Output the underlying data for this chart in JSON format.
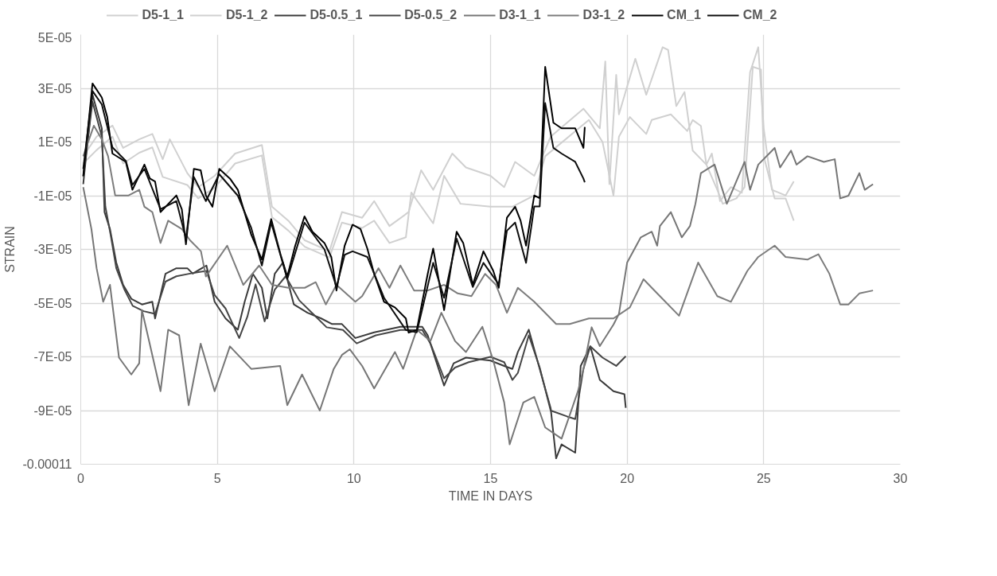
{
  "chart_data": {
    "type": "line",
    "xlabel": "TIME IN DAYS",
    "ylabel": "STRAIN",
    "xlim": [
      0,
      30
    ],
    "xticks": [
      0,
      5,
      10,
      15,
      20,
      25,
      30
    ],
    "ylim": [
      -0.00011,
      5e-05
    ],
    "yticks": [
      {
        "value": 5e-05,
        "label": "5E-05"
      },
      {
        "value": 3e-05,
        "label": "3E-05"
      },
      {
        "value": 1e-05,
        "label": "1E-05"
      },
      {
        "value": -1e-05,
        "label": "-1E-05"
      },
      {
        "value": -3e-05,
        "label": "-3E-05"
      },
      {
        "value": -5e-05,
        "label": "-5E-05"
      },
      {
        "value": -7e-05,
        "label": "-7E-05"
      },
      {
        "value": -9e-05,
        "label": "-9E-05"
      },
      {
        "value": -0.00011,
        "label": "-0.00011"
      }
    ],
    "grid": true,
    "legend": "top",
    "marker": "none",
    "line_style": "solid",
    "series": [
      {
        "name": "D5-1_1",
        "color": "#d0d0d0",
        "x": [
          0.09,
          0.58,
          1.16,
          1.55,
          2.14,
          2.62,
          3.0,
          3.26,
          3.9,
          4.3,
          4.9,
          5.65,
          6.63,
          7.0,
          7.6,
          8.2,
          9.1,
          9.56,
          10.3,
          10.74,
          11.3,
          12.0,
          12.46,
          12.9,
          13.6,
          14.1,
          15.0,
          15.5,
          15.9,
          16.6,
          17.2,
          18.4,
          19.0,
          19.2,
          19.35,
          19.6,
          19.7,
          20.3,
          20.7,
          21.3,
          21.5,
          21.8,
          22.1,
          22.4,
          22.9,
          23.1,
          23.4,
          23.8,
          24.2,
          24.5,
          24.8,
          25.0,
          25.3,
          25.8,
          26.1
        ],
        "values": [
          4.7e-06,
          1.2e-05,
          1.61e-05,
          7.8e-06,
          1.1e-05,
          1.3e-05,
          3.6e-06,
          1.1e-05,
          -1.6e-06,
          -6.8e-06,
          -2.6e-06,
          5.7e-06,
          8.9e-06,
          -1.41e-05,
          -1.93e-05,
          -2.66e-05,
          -3.07e-05,
          -1.61e-05,
          -1.82e-05,
          -1.2e-05,
          -2.13e-05,
          -1.61e-05,
          -5e-07,
          -7.8e-06,
          5.7e-06,
          5e-07,
          -2.6e-06,
          -6.8e-06,
          2.6e-06,
          -2.6e-06,
          1.2e-05,
          2.24e-05,
          1.51e-05,
          4e-05,
          -5.7e-06,
          3.5e-05,
          2.03e-05,
          4.1e-05,
          2.76e-05,
          4.53e-05,
          4.43e-05,
          2.34e-05,
          2.86e-05,
          6.8e-06,
          1.6e-06,
          5.7e-06,
          -1.2e-05,
          -6.8e-06,
          -8.9e-06,
          3.6e-05,
          4.53e-05,
          1.51e-05,
          -7.8e-06,
          -9.9e-06,
          -4.7e-06
        ]
      },
      {
        "name": "D5-1_2",
        "color": "#d0d0d0",
        "x": [
          0.09,
          0.58,
          1.16,
          1.55,
          2.14,
          2.62,
          3.0,
          3.9,
          4.3,
          4.9,
          5.65,
          6.63,
          7.0,
          7.6,
          8.2,
          9.1,
          9.56,
          10.3,
          10.74,
          11.3,
          11.9,
          12.1,
          12.9,
          13.3,
          13.9,
          15.0,
          15.8,
          16.6,
          17.0,
          18.6,
          19.1,
          19.5,
          19.7,
          20.1,
          20.7,
          20.9,
          21.6,
          22.2,
          22.4,
          22.7,
          22.9,
          23.3,
          23.5,
          24.0,
          24.3,
          24.6,
          24.9,
          25.0,
          25.4,
          25.8,
          26.1
        ],
        "values": [
          2e-06,
          7e-06,
          1.2e-05,
          2e-06,
          6e-06,
          8e-06,
          -3e-06,
          -6e-06,
          -1.1e-05,
          -7e-06,
          2e-06,
          5e-06,
          -1.8e-05,
          -2.3e-05,
          -2.9e-05,
          -3.3e-05,
          -2e-05,
          -2.2e-05,
          -1.93e-05,
          -2.76e-05,
          -2.55e-05,
          -8.8e-06,
          -2.03e-05,
          -2.6e-06,
          -1.3e-05,
          -1.41e-05,
          -1.41e-05,
          -9.9e-06,
          4.7e-06,
          1.82e-05,
          1e-05,
          -1e-05,
          1.2e-05,
          1.93e-05,
          1.3e-05,
          1.82e-05,
          2.03e-05,
          1.41e-05,
          1.82e-05,
          1.6e-05,
          1.6e-06,
          -7.8e-06,
          -1.3e-05,
          -1.1e-05,
          -6.8e-06,
          3.8e-05,
          3.7e-05,
          4.7e-06,
          -1.1e-05,
          -1.1e-05,
          -1.93e-05
        ]
      },
      {
        "name": "D5-0.5_1",
        "color": "#3a3a3a",
        "x": [
          0.09,
          0.43,
          0.77,
          0.87,
          1.07,
          1.3,
          1.55,
          1.85,
          2.24,
          2.62,
          2.72,
          3.1,
          3.5,
          3.9,
          4.1,
          4.6,
          4.9,
          5.3,
          5.75,
          6.0,
          6.3,
          6.63,
          6.83,
          7.1,
          7.4,
          7.8,
          8.3,
          8.8,
          9.2,
          9.56,
          10.05,
          10.74,
          11.7,
          12.5,
          12.7,
          13.0,
          13.3,
          13.65,
          14.1,
          15.0,
          15.5,
          15.8,
          16.0,
          16.4,
          16.8,
          17.2,
          17.4,
          17.6,
          18.1,
          18.3,
          18.65,
          19.0,
          19.5,
          19.9,
          19.95
        ],
        "values": [
          -5.7e-06,
          2.76e-05,
          1.51e-05,
          -1.61e-05,
          -2.24e-05,
          -3.49e-05,
          -4.32e-05,
          -4.84e-05,
          -5.05e-05,
          -4.95e-05,
          -5.57e-05,
          -3.91e-05,
          -3.7e-05,
          -3.7e-05,
          -3.9e-05,
          -3.6e-05,
          -4.95e-05,
          -5.57e-05,
          -5.99e-05,
          -4.95e-05,
          -3.91e-05,
          -4.43e-05,
          -5.57e-05,
          -3.91e-05,
          -3.49e-05,
          -5.05e-05,
          -5.36e-05,
          -5.57e-05,
          -5.78e-05,
          -5.78e-05,
          -6.3e-05,
          -6.09e-05,
          -5.88e-05,
          -5.88e-05,
          -6.2e-05,
          -7.14e-05,
          -8.07e-05,
          -7.24e-05,
          -7.03e-05,
          -7.14e-05,
          -7.34e-05,
          -7.45e-05,
          -6.82e-05,
          -5.99e-05,
          -7.45e-05,
          -8.91e-05,
          -0.0001078,
          -0.0001026,
          -0.0001057,
          -7.34e-05,
          -6.61e-05,
          -7.86e-05,
          -8.28e-05,
          -8.39e-05,
          -8.9e-05
        ]
      },
      {
        "name": "D5-0.5_2",
        "color": "#454545",
        "x": [
          0.09,
          0.43,
          0.77,
          0.9,
          1.1,
          1.3,
          1.6,
          1.9,
          2.3,
          2.72,
          3.1,
          3.5,
          4.0,
          4.6,
          4.9,
          5.3,
          5.8,
          6.1,
          6.4,
          6.73,
          7.1,
          7.5,
          8.0,
          8.5,
          9.0,
          9.6,
          10.1,
          10.8,
          11.7,
          12.5,
          12.8,
          13.3,
          13.7,
          14.2,
          15.0,
          15.5,
          15.8,
          16.0,
          16.4,
          16.8,
          17.2,
          17.8,
          18.1,
          18.4,
          18.65,
          19.1,
          19.6,
          19.95
        ],
        "values": [
          -3e-06,
          2.5e-05,
          1.2e-05,
          -1.4e-05,
          -2.5e-05,
          -3.7e-05,
          -4.5e-05,
          -5.1e-05,
          -5.3e-05,
          -5.4e-05,
          -4.2e-05,
          -4e-05,
          -3.9e-05,
          -3.8e-05,
          -4.7e-05,
          -5.2e-05,
          -6.3e-05,
          -5.5e-05,
          -4.3e-05,
          -5.68e-05,
          -4.5e-05,
          -4e-05,
          -4.9e-05,
          -5.4e-05,
          -5.9e-05,
          -6e-05,
          -6.5e-05,
          -6.2e-05,
          -6e-05,
          -6e-05,
          -6.5e-05,
          -7.8e-05,
          -7.4e-05,
          -7.2e-05,
          -7e-05,
          -7.2e-05,
          -7.86e-05,
          -7.6e-05,
          -6.2e-05,
          -7.4e-05,
          -9e-05,
          -9.22e-05,
          -9.32e-05,
          -7.45e-05,
          -6.61e-05,
          -7.03e-05,
          -7.34e-05,
          -6.98e-05
        ]
      },
      {
        "name": "D3-1_1",
        "color": "#767676",
        "x": [
          0.09,
          0.39,
          0.58,
          0.82,
          1.07,
          1.4,
          1.85,
          2.14,
          2.24,
          2.5,
          2.92,
          3.2,
          3.6,
          3.95,
          4.39,
          4.9,
          5.46,
          6.24,
          7.3,
          7.56,
          8.1,
          8.75,
          9.26,
          9.56,
          9.85,
          10.3,
          10.74,
          11.5,
          11.8,
          12.3,
          12.8,
          13.2,
          13.7,
          14.1,
          14.7,
          15.1,
          15.5,
          15.7,
          16.2,
          16.6,
          17.0,
          17.6,
          18.2,
          18.4,
          18.7,
          19.0,
          19.5,
          19.7,
          20.0,
          20.5,
          20.9,
          21.1,
          21.2,
          21.6,
          22.0,
          22.3,
          22.5,
          22.7,
          23.2,
          23.65,
          24.3,
          24.5,
          24.8,
          25.4,
          25.6,
          26.0,
          26.2,
          26.6,
          27.2,
          27.6,
          27.8,
          28.1,
          28.5,
          28.7,
          29.0
        ],
        "values": [
          -6.8e-06,
          -2.24e-05,
          -3.7e-05,
          -4.95e-05,
          -4.32e-05,
          -7.03e-05,
          -7.66e-05,
          -7.24e-05,
          -5.26e-05,
          -6.41e-05,
          -8.28e-05,
          -5.99e-05,
          -6.2e-05,
          -8.8e-05,
          -6.51e-05,
          -8.28e-05,
          -6.61e-05,
          -7.45e-05,
          -7.34e-05,
          -8.8e-05,
          -7.66e-05,
          -9e-05,
          -7.45e-05,
          -6.93e-05,
          -6.72e-05,
          -7.34e-05,
          -8.18e-05,
          -6.82e-05,
          -7.45e-05,
          -5.99e-05,
          -6.41e-05,
          -5.36e-05,
          -6.41e-05,
          -6.82e-05,
          -5.88e-05,
          -7.14e-05,
          -8.7e-05,
          -0.0001026,
          -8.7e-05,
          -8.49e-05,
          -9.63e-05,
          -0.0001005,
          -8.28e-05,
          -7.45e-05,
          -5.9e-05,
          -6.6e-05,
          -5.8e-05,
          -5.4e-05,
          -3.49e-05,
          -2.55e-05,
          -2.34e-05,
          -2.86e-05,
          -2.13e-05,
          -1.61e-05,
          -2.55e-05,
          -2.13e-05,
          -1.3e-05,
          -1.6e-06,
          1.6e-06,
          -1.3e-05,
          2.6e-06,
          -7.8e-06,
          1.6e-06,
          7.8e-06,
          5e-07,
          6.8e-06,
          1.6e-06,
          4.7e-06,
          2.6e-06,
          3.6e-06,
          -1.1e-05,
          -1e-05,
          -1.6e-06,
          -7.8e-06,
          -5.7e-06
        ]
      },
      {
        "name": "D3-1_2",
        "color": "#7c7c7c",
        "x": [
          0.09,
          0.48,
          0.77,
          1.0,
          1.26,
          1.75,
          2.14,
          2.33,
          2.62,
          2.92,
          3.2,
          3.7,
          4.0,
          4.4,
          4.58,
          5.36,
          5.95,
          6.53,
          7.0,
          7.6,
          8.2,
          8.6,
          8.97,
          9.36,
          10.05,
          10.3,
          10.9,
          11.3,
          11.7,
          12.2,
          12.7,
          13.3,
          13.8,
          14.3,
          14.8,
          15.2,
          15.6,
          16.0,
          16.6,
          17.4,
          17.9,
          18.6,
          19.1,
          19.5,
          20.1,
          20.6,
          21.2,
          21.9,
          22.6,
          23.3,
          23.8,
          24.4,
          24.8,
          25.4,
          25.8,
          26.6,
          27.0,
          27.4,
          27.8,
          28.1,
          28.5,
          29.0
        ],
        "values": [
          4.7e-06,
          1.61e-05,
          1.1e-05,
          4.7e-06,
          -9.9e-06,
          -9.9e-06,
          -7.8e-06,
          -1.41e-05,
          -1.61e-05,
          -2.76e-05,
          -1.93e-05,
          -2.24e-05,
          -2.66e-05,
          -3.07e-05,
          -4.01e-05,
          -2.86e-05,
          -4.32e-05,
          -3.6e-05,
          -4.32e-05,
          -4.43e-05,
          -4.43e-05,
          -4.22e-05,
          -5.05e-05,
          -4.32e-05,
          -4.95e-05,
          -4.74e-05,
          -3.7e-05,
          -4.43e-05,
          -3.6e-05,
          -4.53e-05,
          -4.53e-05,
          -4.32e-05,
          -4.64e-05,
          -4.74e-05,
          -3.91e-05,
          -4.32e-05,
          -5.36e-05,
          -4.43e-05,
          -4.95e-05,
          -5.78e-05,
          -5.78e-05,
          -5.57e-05,
          -5.57e-05,
          -5.57e-05,
          -5.16e-05,
          -4.11e-05,
          -4.74e-05,
          -5.47e-05,
          -3.49e-05,
          -4.74e-05,
          -4.95e-05,
          -3.8e-05,
          -3.28e-05,
          -2.86e-05,
          -3.28e-05,
          -3.38e-05,
          -3.18e-05,
          -3.9e-05,
          -5.05e-05,
          -5.05e-05,
          -4.64e-05,
          -4.53e-05
        ]
      },
      {
        "name": "CM_1",
        "color": "#000000",
        "x": [
          0.09,
          0.43,
          0.77,
          0.97,
          1.16,
          1.65,
          1.89,
          2.33,
          2.53,
          2.72,
          2.92,
          3.5,
          3.7,
          3.85,
          4.14,
          4.39,
          4.58,
          4.82,
          5.07,
          5.46,
          5.75,
          5.9,
          6.24,
          6.63,
          6.97,
          7.31,
          7.56,
          7.85,
          8.19,
          8.48,
          8.92,
          9.17,
          9.36,
          9.66,
          9.95,
          10.24,
          10.49,
          10.74,
          11.1,
          11.5,
          11.9,
          12.0,
          12.3,
          12.7,
          12.9,
          13.3,
          13.76,
          14.0,
          14.35,
          14.74,
          15.1,
          15.3,
          15.6,
          15.9,
          16.1,
          16.3,
          16.6,
          16.8,
          17.0,
          17.3,
          17.6,
          18.1,
          18.4,
          18.45
        ],
        "values": [
          -2.6e-06,
          3.18e-05,
          2.66e-05,
          1.93e-05,
          5.7e-06,
          2.6e-06,
          -7.8e-06,
          1.6e-06,
          -3.6e-06,
          -4.7e-06,
          -1.61e-05,
          -9.9e-06,
          -1.51e-05,
          -2.81e-05,
          0,
          -5e-07,
          -9.9e-06,
          -1.41e-05,
          0,
          -3.6e-06,
          -7.8e-06,
          -1.3e-05,
          -2.45e-05,
          -3.38e-05,
          -1.87e-05,
          -3.18e-05,
          -4.01e-05,
          -2.86e-05,
          -1.77e-05,
          -2.34e-05,
          -2.76e-05,
          -3.28e-05,
          -4.53e-05,
          -2.86e-05,
          -2.08e-05,
          -2.24e-05,
          -2.97e-05,
          -3.91e-05,
          -4.95e-05,
          -5.16e-05,
          -5.57e-05,
          -6.1e-05,
          -6e-05,
          -3.91e-05,
          -2.97e-05,
          -5.26e-05,
          -2.34e-05,
          -2.76e-05,
          -4.32e-05,
          -3.07e-05,
          -3.8e-05,
          -4.43e-05,
          -1.82e-05,
          -1.41e-05,
          -1.93e-05,
          -2.86e-05,
          -9.9e-06,
          -1.09e-05,
          3.8e-05,
          1.72e-05,
          1.51e-05,
          1.51e-05,
          7.8e-06,
          1.56e-05
        ]
      },
      {
        "name": "CM_2",
        "color": "#0d0d0d",
        "x": [
          0.09,
          0.43,
          0.77,
          1.16,
          1.65,
          1.89,
          2.33,
          2.92,
          3.5,
          3.85,
          4.14,
          4.58,
          5.07,
          5.75,
          6.24,
          6.63,
          6.97,
          7.56,
          8.19,
          8.92,
          9.36,
          9.66,
          9.95,
          10.49,
          11.1,
          11.9,
          12.3,
          12.9,
          13.3,
          13.76,
          14.35,
          14.74,
          15.3,
          15.6,
          15.9,
          16.3,
          16.6,
          16.8,
          17.0,
          17.3,
          17.6,
          18.1,
          18.4,
          18.45
        ],
        "values": [
          0,
          2.9e-05,
          2.4e-05,
          8e-06,
          3e-06,
          -6e-06,
          0,
          -1.5e-05,
          -1.2e-05,
          -2.6e-05,
          -3e-06,
          -1.2e-05,
          -2e-06,
          -1e-05,
          -2.2e-05,
          -3.6e-05,
          -2e-05,
          -4.1e-05,
          -2e-05,
          -3e-05,
          -4.4e-05,
          -3.2e-05,
          -3.07e-05,
          -3.28e-05,
          -4.8e-05,
          -6e-05,
          -6.09e-05,
          -3.5e-05,
          -4.8e-05,
          -2.6e-05,
          -4.4e-05,
          -3.5e-05,
          -4.3e-05,
          -2.3e-05,
          -2e-05,
          -3.5e-05,
          -1.4e-05,
          -1.4e-05,
          2.45e-05,
          7.8e-06,
          5.7e-06,
          2.6e-06,
          -3.6e-06,
          -5e-06
        ]
      }
    ]
  }
}
